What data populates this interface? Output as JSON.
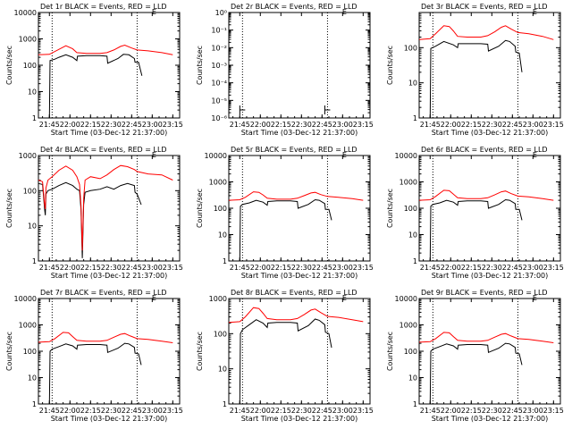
{
  "colors": {
    "events": "#000000",
    "lld": "#ff0000",
    "axis": "#000000"
  },
  "shared": {
    "xlabel": "Start Time (03-Dec-12 21:37:00)",
    "ylabel": "Counts/sec",
    "x_tick_labels": [
      "21:45",
      "22:00",
      "22:15",
      "22:30",
      "22:45",
      "23:00",
      "23:15"
    ],
    "x_tick_minutes": [
      8,
      23,
      38,
      53,
      68,
      83,
      98
    ],
    "x_range_minutes": [
      0,
      103
    ],
    "dotted_lines_minutes": [
      10,
      72
    ],
    "y_scale": "log",
    "legend_mark": "E"
  },
  "chart_data": [
    {
      "type": "line",
      "title": "Det 1r BLACK = Events, RED = LLD",
      "ylim": [
        1,
        10000
      ],
      "y_tick_labels": [
        "1",
        "10",
        "100",
        "1000",
        "10000"
      ],
      "series": [
        {
          "name": "Events",
          "x": [
            0,
            8,
            8.5,
            12,
            15,
            20,
            25,
            28,
            28.5,
            35,
            45,
            50,
            50.5,
            58,
            62,
            66,
            70,
            70.5,
            73,
            75.5
          ],
          "y": [
            0,
            0,
            150,
            170,
            200,
            250,
            200,
            150,
            220,
            230,
            230,
            220,
            120,
            180,
            260,
            250,
            180,
            130,
            130,
            40
          ]
        },
        {
          "name": "LLD",
          "x": [
            0,
            8,
            15,
            20,
            25,
            28,
            35,
            45,
            50,
            55,
            60,
            63,
            68,
            72,
            80,
            90,
            98
          ],
          "y": [
            250,
            260,
            400,
            550,
            420,
            300,
            280,
            280,
            300,
            380,
            520,
            580,
            450,
            380,
            350,
            300,
            250
          ]
        }
      ]
    },
    {
      "type": "line",
      "title": "Det 2r BLACK = Events, RED = LLD",
      "ylim": [
        1e-06,
        1
      ],
      "y_tick_labels": [
        "10⁻⁶",
        "10⁻⁵",
        "10⁻⁴",
        "10⁻³",
        "10⁻²",
        "10⁻¹",
        "10⁰"
      ],
      "series": []
    },
    {
      "type": "line",
      "title": "Det 3r BLACK = Events, RED = LLD",
      "ylim": [
        1,
        1000
      ],
      "y_tick_labels": [
        "1",
        "10",
        "100"
      ],
      "series": [
        {
          "name": "Events",
          "x": [
            8,
            8.5,
            12,
            18,
            25,
            28,
            28.5,
            35,
            45,
            50,
            50.5,
            58,
            63,
            66,
            70,
            70.5,
            73,
            75
          ],
          "y": [
            0,
            95,
            110,
            150,
            120,
            100,
            130,
            130,
            130,
            125,
            80,
            110,
            160,
            150,
            110,
            75,
            70,
            20
          ]
        },
        {
          "name": "LLD",
          "x": [
            0,
            8,
            12,
            18,
            22,
            25,
            28,
            35,
            45,
            50,
            55,
            60,
            63,
            67,
            72,
            80,
            90,
            98
          ],
          "y": [
            170,
            180,
            250,
            420,
            400,
            300,
            210,
            200,
            200,
            220,
            280,
            380,
            420,
            340,
            270,
            250,
            210,
            170
          ]
        }
      ]
    },
    {
      "type": "line",
      "title": "Det 4r BLACK = Events, RED = LLD",
      "ylim": [
        1,
        1000
      ],
      "y_tick_labels": [
        "1",
        "10",
        "100",
        "1000"
      ],
      "series": [
        {
          "name": "Events",
          "x": [
            0,
            3,
            4.5,
            5,
            5.5,
            7,
            10,
            15,
            20,
            25,
            28,
            30,
            31,
            32,
            33,
            34,
            38,
            45,
            50,
            55,
            60,
            65,
            70,
            70.5,
            72,
            75
          ],
          "y": [
            160,
            150,
            30,
            20,
            80,
            100,
            110,
            140,
            170,
            140,
            110,
            100,
            30,
            1.2,
            40,
            90,
            100,
            110,
            130,
            110,
            140,
            160,
            140,
            90,
            80,
            40
          ]
        },
        {
          "name": "LLD",
          "x": [
            0,
            3,
            4.5,
            5,
            5.5,
            7,
            10,
            15,
            20,
            25,
            28,
            30,
            31,
            32,
            33,
            34,
            38,
            45,
            50,
            55,
            60,
            65,
            70,
            72,
            80,
            90,
            98
          ],
          "y": [
            200,
            180,
            40,
            30,
            120,
            200,
            250,
            380,
            500,
            380,
            250,
            150,
            40,
            2,
            60,
            200,
            250,
            220,
            280,
            400,
            520,
            480,
            400,
            350,
            300,
            280,
            200
          ]
        }
      ]
    },
    {
      "type": "line",
      "title": "Det 5r BLACK = Events, RED = LLD",
      "ylim": [
        1,
        10000
      ],
      "y_tick_labels": [
        "1",
        "10",
        "100",
        "1000",
        "10000"
      ],
      "series": [
        {
          "name": "Events",
          "x": [
            8,
            8.5,
            10,
            15,
            20,
            25,
            28,
            28.5,
            35,
            45,
            50,
            50.5,
            58,
            63,
            66,
            70,
            70.5,
            73,
            75
          ],
          "y": [
            0,
            120,
            140,
            160,
            200,
            170,
            130,
            180,
            190,
            190,
            180,
            100,
            140,
            210,
            200,
            150,
            90,
            90,
            35
          ]
        },
        {
          "name": "LLD",
          "x": [
            0,
            8,
            12,
            18,
            22,
            25,
            28,
            35,
            45,
            50,
            55,
            60,
            63,
            67,
            72,
            80,
            90,
            98
          ],
          "y": [
            200,
            210,
            260,
            420,
            400,
            320,
            240,
            220,
            220,
            240,
            300,
            380,
            400,
            330,
            280,
            260,
            230,
            200
          ]
        }
      ]
    },
    {
      "type": "line",
      "title": "Det 6r BLACK = Events, RED = LLD",
      "ylim": [
        1,
        10000
      ],
      "y_tick_labels": [
        "1",
        "10",
        "100",
        "1000",
        "10000"
      ],
      "series": [
        {
          "name": "Events",
          "x": [
            8,
            8.5,
            10,
            15,
            20,
            25,
            28,
            28.5,
            35,
            45,
            50,
            50.5,
            58,
            63,
            66,
            70,
            70.5,
            73,
            75
          ],
          "y": [
            0,
            120,
            140,
            160,
            200,
            170,
            130,
            180,
            190,
            190,
            180,
            100,
            140,
            210,
            200,
            150,
            90,
            90,
            35
          ]
        },
        {
          "name": "LLD",
          "x": [
            0,
            8,
            12,
            18,
            22,
            25,
            28,
            35,
            45,
            50,
            55,
            60,
            63,
            67,
            72,
            80,
            90,
            98
          ],
          "y": [
            200,
            210,
            280,
            480,
            460,
            340,
            250,
            230,
            230,
            250,
            320,
            420,
            450,
            360,
            290,
            270,
            230,
            200
          ]
        }
      ]
    },
    {
      "type": "line",
      "title": "Det 7r BLACK = Events, RED = LLD",
      "ylim": [
        1,
        10000
      ],
      "y_tick_labels": [
        "1",
        "10",
        "100",
        "1000",
        "10000"
      ],
      "series": [
        {
          "name": "Events",
          "x": [
            8,
            8.5,
            10,
            15,
            20,
            25,
            28,
            28.5,
            35,
            45,
            50,
            50.5,
            58,
            63,
            66,
            70,
            70.5,
            73,
            75
          ],
          "y": [
            0,
            100,
            120,
            150,
            190,
            160,
            120,
            170,
            180,
            180,
            170,
            90,
            130,
            200,
            190,
            140,
            85,
            80,
            30
          ]
        },
        {
          "name": "LLD",
          "x": [
            0,
            8,
            12,
            18,
            22,
            25,
            28,
            35,
            45,
            50,
            55,
            60,
            63,
            67,
            72,
            80,
            90,
            98
          ],
          "y": [
            220,
            230,
            300,
            520,
            500,
            360,
            260,
            240,
            240,
            260,
            340,
            440,
            470,
            380,
            300,
            280,
            240,
            210
          ]
        }
      ]
    },
    {
      "type": "line",
      "title": "Det 8r BLACK = Events, RED = LLD",
      "ylim": [
        1,
        1000
      ],
      "y_tick_labels": [
        "1",
        "10",
        "100",
        "1000"
      ],
      "series": [
        {
          "name": "Events",
          "x": [
            8,
            8.5,
            10,
            15,
            20,
            25,
            28,
            28.5,
            35,
            45,
            50,
            50.5,
            58,
            63,
            66,
            70,
            70.5,
            73,
            75
          ],
          "y": [
            0,
            100,
            130,
            180,
            250,
            200,
            150,
            200,
            210,
            210,
            200,
            120,
            170,
            260,
            240,
            180,
            110,
            100,
            40
          ]
        },
        {
          "name": "LLD",
          "x": [
            0,
            8,
            12,
            18,
            22,
            25,
            28,
            35,
            45,
            50,
            55,
            60,
            63,
            67,
            72,
            80,
            90,
            98
          ],
          "y": [
            210,
            220,
            300,
            550,
            520,
            380,
            270,
            250,
            250,
            270,
            350,
            470,
            500,
            400,
            310,
            290,
            250,
            220
          ]
        }
      ]
    },
    {
      "type": "line",
      "title": "Det 9r BLACK = Events, RED = LLD",
      "ylim": [
        1,
        10000
      ],
      "y_tick_labels": [
        "1",
        "10",
        "100",
        "1000",
        "10000"
      ],
      "series": [
        {
          "name": "Events",
          "x": [
            8,
            8.5,
            10,
            15,
            20,
            25,
            28,
            28.5,
            35,
            45,
            50,
            50.5,
            58,
            63,
            66,
            70,
            70.5,
            73,
            75
          ],
          "y": [
            0,
            100,
            120,
            150,
            190,
            160,
            120,
            170,
            180,
            180,
            170,
            90,
            130,
            200,
            190,
            140,
            85,
            80,
            30
          ]
        },
        {
          "name": "LLD",
          "x": [
            0,
            8,
            12,
            18,
            22,
            25,
            28,
            35,
            45,
            50,
            55,
            60,
            63,
            67,
            72,
            80,
            90,
            98
          ],
          "y": [
            220,
            230,
            300,
            520,
            500,
            360,
            260,
            240,
            240,
            260,
            340,
            440,
            470,
            380,
            300,
            280,
            240,
            210
          ]
        }
      ]
    }
  ]
}
